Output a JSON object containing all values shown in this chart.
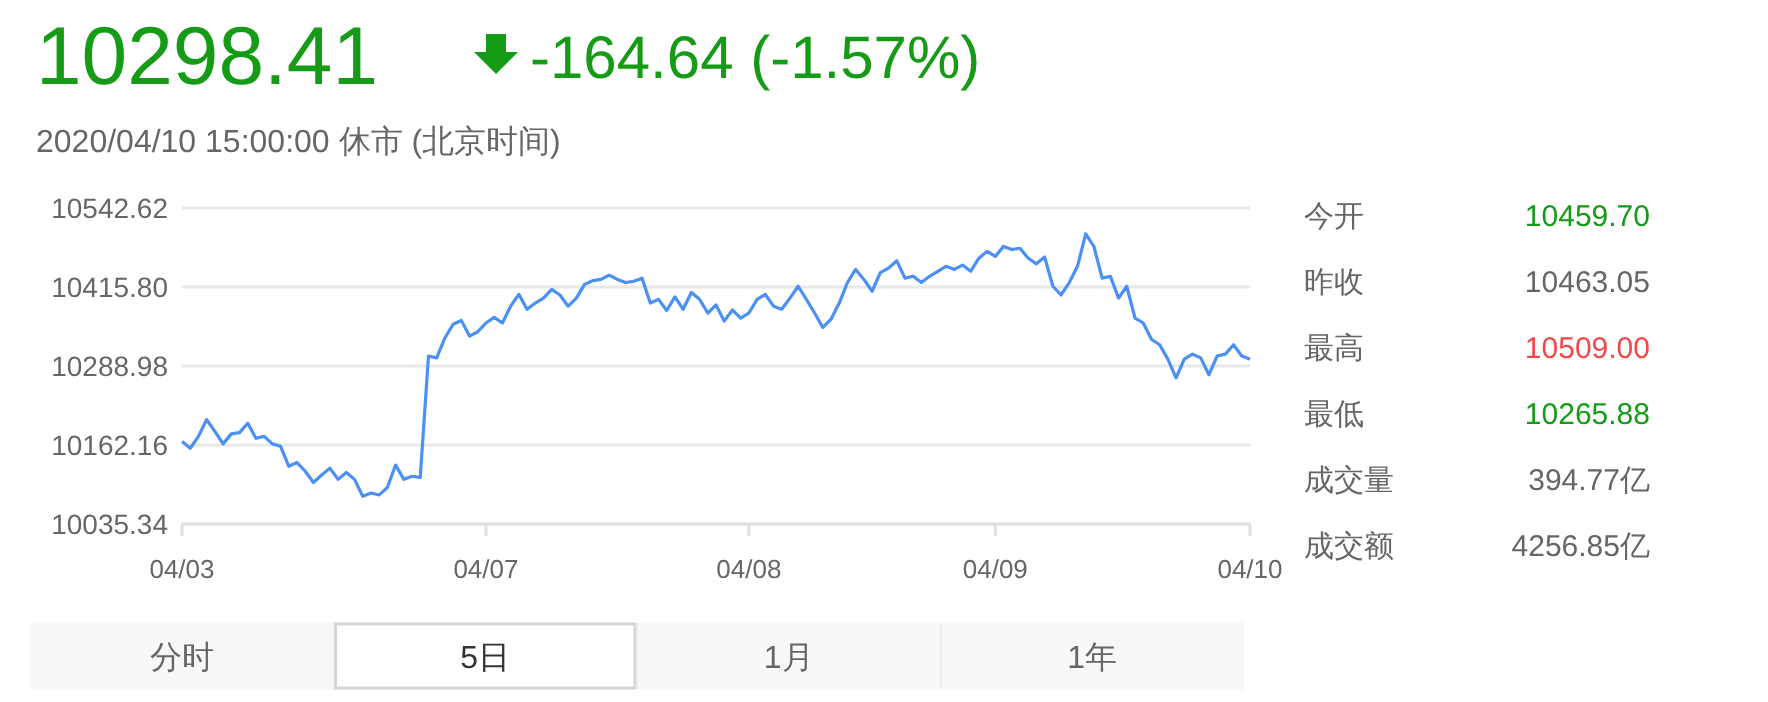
{
  "chart_data": {
    "type": "line",
    "title": "10298.41",
    "subtitle": "-164.64 (-1.57%)",
    "annotations": [
      "2020/04/10 15:00:00 休市 (北京时间)",
      "今开",
      "10459.70",
      "昨收",
      "10463.05",
      "最高",
      "10509.00",
      "最低",
      "10265.88",
      "成交量",
      "394.77亿",
      "成交额",
      "4256.85亿",
      "分时",
      "5日",
      "1月",
      "1年"
    ],
    "ylim": [
      10035.34,
      10542.62
    ],
    "yticks": [
      10035.34,
      10162.16,
      10288.98,
      {
        "value": 10415.8,
        "label": "10415.80"
      },
      10542.62
    ],
    "categories": [
      "04/03",
      null,
      null,
      null,
      null,
      null,
      null,
      null,
      null,
      null,
      null,
      null,
      null,
      null,
      null,
      null,
      null,
      null,
      null,
      null,
      null,
      null,
      null,
      null,
      null,
      null,
      null,
      null,
      null,
      null,
      null,
      null,
      null,
      null,
      null,
      null,
      null,
      "04/07",
      null,
      null,
      null,
      null,
      null,
      null,
      null,
      null,
      null,
      null,
      null,
      null,
      null,
      null,
      null,
      null,
      null,
      null,
      null,
      null,
      null,
      null,
      null,
      null,
      null,
      null,
      null,
      null,
      null,
      null,
      null,
      "04/08",
      null,
      null,
      null,
      null,
      null,
      null,
      null,
      null,
      null,
      null,
      null,
      null,
      null,
      null,
      null,
      null,
      null,
      null,
      null,
      null,
      null,
      null,
      null,
      null,
      null,
      null,
      null,
      null,
      null,
      "04/09",
      null,
      null,
      null,
      null,
      null,
      null,
      null,
      null,
      null,
      null,
      null,
      null,
      null,
      null,
      null,
      null,
      null,
      null,
      null,
      null,
      null,
      null,
      null,
      null,
      null,
      null,
      null,
      null,
      null,
      null,
      "04/10"
    ],
    "grid": "y",
    "marker": "none",
    "line_style": "solid",
    "series": [
      {
        "color": "#4a90f5",
        "values": [
          10168,
          10157,
          10176,
          10203,
          10184,
          10164,
          10180,
          10182,
          10197,
          10173,
          10176,
          10164,
          10160,
          10128,
          10134,
          10120,
          10102,
          10114,
          10125,
          10107,
          10118,
          10107,
          10080,
          10085,
          10082,
          10094,
          10130,
          10107,
          10112,
          10110,
          10305,
          10302,
          10334,
          10356,
          10362,
          10337,
          10344,
          10358,
          10367,
          10358,
          10385,
          10404,
          10380,
          10390,
          10398,
          10412,
          10403,
          10385,
          10398,
          10420,
          10426,
          10428,
          10435,
          10428,
          10423,
          10425,
          10430,
          10390,
          10396,
          10378,
          10400,
          10380,
          10407,
          10396,
          10374,
          10387,
          10361,
          10379,
          10366,
          10374,
          10396,
          10404,
          10385,
          10380,
          10398,
          10417,
          10396,
          10374,
          10351,
          10364,
          10390,
          10423,
          10444,
          10428,
          10409,
          10439,
          10446,
          10458,
          10430,
          10433,
          10423,
          10433,
          10441,
          10449,
          10444,
          10451,
          10441,
          10462,
          10473,
          10465,
          10481,
          10476,
          10478,
          10462,
          10453,
          10464,
          10417,
          10403,
          10423,
          10449,
          10501,
          10481,
          10430,
          10433,
          10398,
          10417,
          10366,
          10358,
          10332,
          10323,
          10300,
          10270,
          10300,
          10308,
          10302,
          10275,
          10305,
          10308,
          10323,
          10305,
          10300
        ]
      }
    ]
  }
}
